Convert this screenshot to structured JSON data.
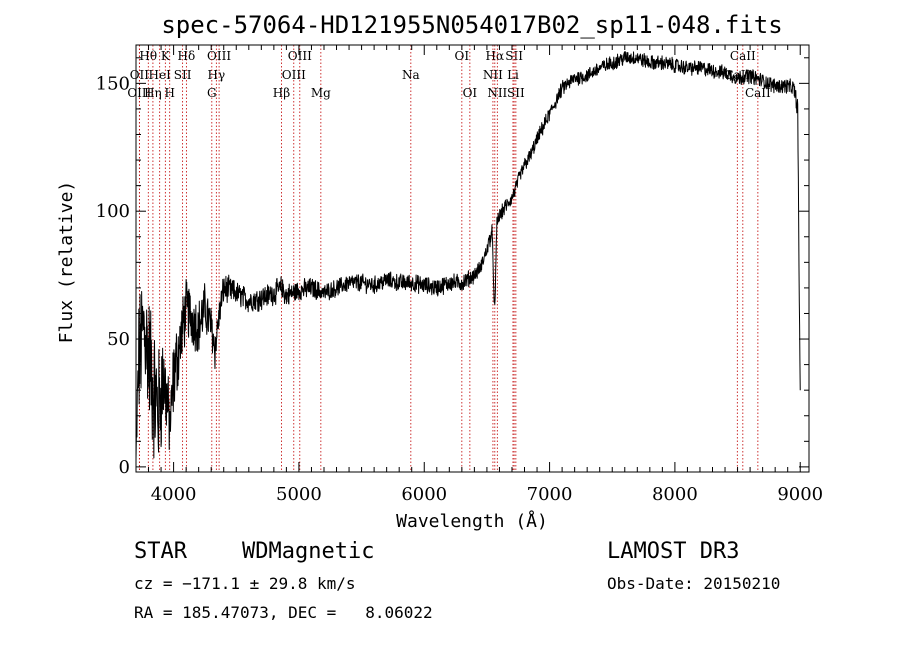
{
  "chart_data": {
    "type": "line",
    "title": "spec-57064-HD121955N054017B02_sp11-048.fits",
    "xlabel": "Wavelength (Å)",
    "ylabel": "Flux (relative)",
    "xlim": [
      3700,
      9070
    ],
    "ylim": [
      -2,
      165
    ],
    "xticks": [
      4000,
      5000,
      6000,
      7000,
      8000,
      9000
    ],
    "yticks": [
      0,
      50,
      100,
      150
    ],
    "spectrum_anchors": {
      "wavelength": [
        3700,
        3720,
        3760,
        3800,
        3840,
        3880,
        3920,
        3950,
        3970,
        4000,
        4050,
        4100,
        4150,
        4200,
        4250,
        4300,
        4330,
        4360,
        4400,
        4500,
        4600,
        4700,
        4800,
        4860,
        4900,
        5000,
        5100,
        5200,
        5300,
        5400,
        5500,
        5600,
        5700,
        5800,
        5900,
        6000,
        6100,
        6200,
        6300,
        6400,
        6450,
        6500,
        6540,
        6563,
        6580,
        6600,
        6650,
        6700,
        6750,
        6800,
        6850,
        6900,
        6950,
        7000,
        7050,
        7100,
        7200,
        7300,
        7400,
        7500,
        7600,
        7700,
        7800,
        7900,
        8000,
        8100,
        8200,
        8300,
        8400,
        8500,
        8600,
        8700,
        8800,
        8900,
        8950,
        8980,
        8990,
        9000
      ],
      "flux": [
        2,
        40,
        55,
        45,
        30,
        22,
        35,
        25,
        15,
        35,
        48,
        62,
        58,
        55,
        62,
        55,
        46,
        58,
        70,
        68,
        65,
        66,
        68,
        70,
        67,
        69,
        70,
        68,
        70,
        72,
        72,
        71,
        73,
        72,
        72,
        71,
        70,
        72,
        72,
        75,
        78,
        85,
        92,
        60,
        96,
        98,
        102,
        105,
        112,
        118,
        122,
        128,
        133,
        138,
        143,
        148,
        152,
        153,
        156,
        158,
        160,
        160,
        158,
        158,
        157,
        156,
        156,
        155,
        154,
        152,
        153,
        151,
        149,
        149,
        148,
        140,
        80,
        28
      ],
      "noise": [
        4,
        22,
        20,
        22,
        24,
        22,
        18,
        14,
        10,
        14,
        12,
        10,
        10,
        9,
        9,
        7,
        7,
        6,
        5,
        4,
        4,
        4,
        4,
        4,
        4,
        3.5,
        3.5,
        3,
        3,
        3,
        3,
        3,
        3,
        3,
        3,
        3,
        3,
        3,
        3,
        2.5,
        2.5,
        2.5,
        3,
        3,
        2.5,
        2.5,
        2.5,
        2.5,
        2.5,
        2.5,
        2.5,
        2.5,
        2.5,
        2.5,
        2.5,
        2.5,
        2.5,
        2.5,
        2.5,
        2.5,
        2.5,
        2.5,
        2.5,
        2.5,
        2.5,
        2.5,
        2.5,
        2.5,
        2.5,
        2.5,
        2.5,
        2.5,
        2.5,
        2.5,
        2.5,
        4,
        4,
        4
      ]
    },
    "line_markers": [
      {
        "name": "Hθ",
        "wavelength": 3798,
        "row": 0
      },
      {
        "name": "OII",
        "wavelength": 3727,
        "row": 1
      },
      {
        "name": "OIII",
        "wavelength": 3727,
        "row": 2
      },
      {
        "name": "K",
        "wavelength": 3934,
        "row": 0
      },
      {
        "name": "HeI",
        "wavelength": 3889,
        "row": 1
      },
      {
        "name": "Hη",
        "wavelength": 3835,
        "row": 2
      },
      {
        "name": "H",
        "wavelength": 3969,
        "row": 2
      },
      {
        "name": "SII",
        "wavelength": 4072,
        "row": 1
      },
      {
        "name": "Hδ",
        "wavelength": 4102,
        "row": 0
      },
      {
        "name": "OIII",
        "wavelength": 4363,
        "row": 0
      },
      {
        "name": "Hγ",
        "wavelength": 4341,
        "row": 1
      },
      {
        "name": "G",
        "wavelength": 4305,
        "row": 2
      },
      {
        "name": "Hβ",
        "wavelength": 4861,
        "row": 2
      },
      {
        "name": "OIII",
        "wavelength": 5007,
        "row": 0
      },
      {
        "name": "OIII",
        "wavelength": 4959,
        "row": 1
      },
      {
        "name": "Mg",
        "wavelength": 5175,
        "row": 2
      },
      {
        "name": "Na",
        "wavelength": 5893,
        "row": 1
      },
      {
        "name": "OI",
        "wavelength": 6300,
        "row": 0
      },
      {
        "name": "OI",
        "wavelength": 6364,
        "row": 2
      },
      {
        "name": "Hα",
        "wavelength": 6563,
        "row": 0
      },
      {
        "name": "NII",
        "wavelength": 6548,
        "row": 1
      },
      {
        "name": "NII",
        "wavelength": 6583,
        "row": 2
      },
      {
        "name": "SII",
        "wavelength": 6717,
        "row": 0
      },
      {
        "name": "Li",
        "wavelength": 6708,
        "row": 1
      },
      {
        "name": "SII",
        "wavelength": 6731,
        "row": 2
      },
      {
        "name": "CaII",
        "wavelength": 8542,
        "row": 0
      },
      {
        "name": "CaII",
        "wavelength": 8498,
        "row": 1
      },
      {
        "name": "CaII",
        "wavelength": 8662,
        "row": 2
      }
    ]
  },
  "info": {
    "object_class": "STAR",
    "subclass": "WDMagnetic",
    "survey": "LAMOST DR3",
    "cz": "cz = −171.1 ± 29.8 km/s",
    "obs_date": "Obs-Date: 20150210",
    "coords": "RA = 185.47073, DEC =   8.06022"
  },
  "colors": {
    "marker": "#c00000",
    "spectrum": "#000000"
  }
}
